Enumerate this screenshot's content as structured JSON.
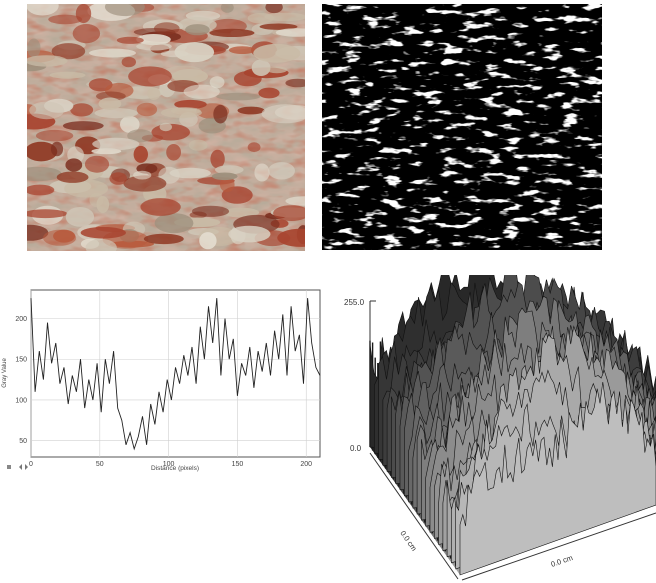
{
  "panels": {
    "photo": {
      "name": "stone-wall-photo"
    },
    "binary": {
      "name": "thresholded-binary-image"
    }
  },
  "profile_plot": {
    "xlabel": "Distance (pixels)",
    "ylabel": "Gray Value",
    "x_ticks": [
      "0",
      "50",
      "100",
      "150",
      "200"
    ],
    "y_ticks": [
      "50",
      "100",
      "150",
      "200"
    ]
  },
  "surface_plot": {
    "z_max_label": "255.0",
    "z_min_label": "0.0",
    "x_label": "0.0 cm",
    "y_label": "0.0 cm"
  },
  "chart_data": [
    {
      "type": "line",
      "xlabel": "Distance (pixels)",
      "ylabel": "Gray Value",
      "xlim": [
        0,
        210
      ],
      "ylim": [
        30,
        235
      ],
      "grid": true,
      "x": [
        0,
        3,
        6,
        9,
        12,
        15,
        18,
        21,
        24,
        27,
        30,
        33,
        36,
        39,
        42,
        45,
        48,
        51,
        54,
        57,
        60,
        63,
        66,
        69,
        72,
        75,
        78,
        81,
        84,
        87,
        90,
        93,
        96,
        99,
        102,
        105,
        108,
        111,
        114,
        117,
        120,
        123,
        126,
        129,
        132,
        135,
        138,
        141,
        144,
        147,
        150,
        153,
        156,
        159,
        162,
        165,
        168,
        171,
        174,
        177,
        180,
        183,
        186,
        189,
        192,
        195,
        198,
        201,
        204,
        207,
        210
      ],
      "y": [
        225,
        110,
        160,
        125,
        195,
        145,
        170,
        120,
        140,
        95,
        130,
        110,
        150,
        90,
        125,
        100,
        145,
        85,
        150,
        120,
        160,
        90,
        75,
        45,
        60,
        40,
        55,
        80,
        45,
        95,
        70,
        110,
        85,
        125,
        100,
        140,
        120,
        155,
        130,
        165,
        120,
        190,
        150,
        215,
        170,
        225,
        130,
        200,
        150,
        175,
        105,
        145,
        130,
        165,
        115,
        160,
        135,
        170,
        130,
        185,
        150,
        205,
        130,
        215,
        160,
        180,
        120,
        225,
        170,
        140,
        130
      ]
    },
    {
      "type": "area",
      "zlim": [
        0.0,
        255.0
      ]
    }
  ]
}
